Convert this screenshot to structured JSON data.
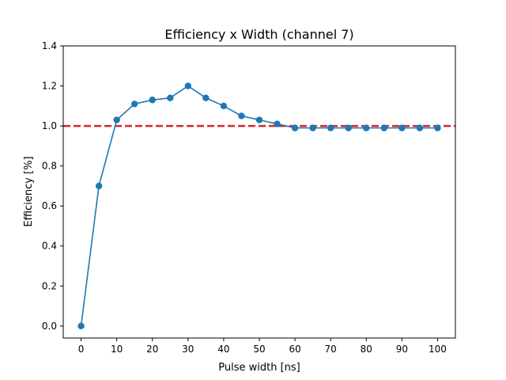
{
  "chart_data": {
    "type": "line",
    "title": "Efficiency x Width (channel 7)",
    "xlabel": "Pulse width [ns]",
    "ylabel": "Efficiency [%]",
    "x": [
      0,
      5,
      10,
      15,
      20,
      25,
      30,
      35,
      40,
      45,
      50,
      55,
      60,
      65,
      70,
      75,
      80,
      85,
      90,
      95,
      100
    ],
    "series": [
      {
        "values": [
          0.0,
          0.7,
          1.03,
          1.11,
          1.13,
          1.14,
          1.2,
          1.14,
          1.1,
          1.05,
          1.03,
          1.01,
          0.99,
          0.99,
          0.99,
          0.99,
          0.99,
          0.99,
          0.99,
          0.99,
          0.99
        ],
        "color": "#1f77b4",
        "marker": "circle"
      }
    ],
    "reference_line": {
      "y": 1.0,
      "color": "#d62728",
      "style": "dashed"
    },
    "xlim": [
      -5,
      105
    ],
    "ylim": [
      -0.06,
      1.4
    ],
    "xticks": [
      0,
      10,
      20,
      30,
      40,
      50,
      60,
      70,
      80,
      90,
      100
    ],
    "xtick_labels": [
      "0",
      "10",
      "20",
      "30",
      "40",
      "50",
      "60",
      "70",
      "80",
      "90",
      "100"
    ],
    "yticks": [
      0.0,
      0.2,
      0.4,
      0.6,
      0.8,
      1.0,
      1.2,
      1.4
    ],
    "ytick_labels": [
      "0.0",
      "0.2",
      "0.4",
      "0.6",
      "0.8",
      "1.0",
      "1.2",
      "1.4"
    ],
    "grid": false,
    "legend": "none"
  }
}
